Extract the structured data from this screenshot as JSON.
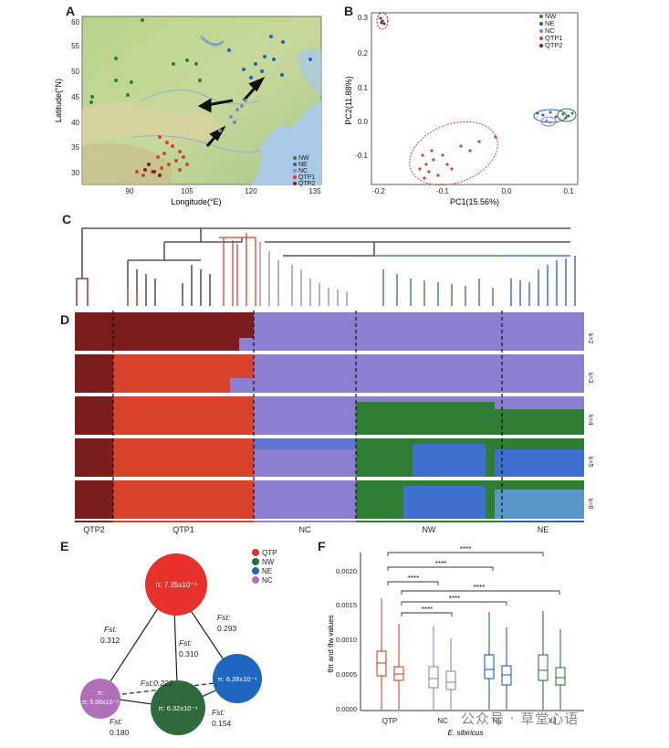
{
  "panels": {
    "A": "A",
    "B": "B",
    "C": "C",
    "D": "D",
    "E": "E",
    "F": "F"
  },
  "colors": {
    "NW": "#2e7d32",
    "NE": "#1e5fc8",
    "NC": "#8c7fd1",
    "QTP1": "#d8432c",
    "QTP2": "#7b1d1d"
  },
  "map": {
    "xlabel": "Longitude(°E)",
    "ylabel": "Latitude(°N)",
    "xticks": [
      "90",
      "105",
      "120",
      "135"
    ],
    "yticks": [
      "60",
      "55",
      "50",
      "45",
      "40",
      "35",
      "30"
    ],
    "legend": [
      "NW",
      "NE",
      "NC",
      "QTP1",
      "QTP2"
    ]
  },
  "pca": {
    "xlabel": "PC1(15.56%)",
    "ylabel": "PC2(11.88%)",
    "xticks": [
      "-0.2",
      "-0.1",
      "0.0",
      "0.1"
    ],
    "yticks": [
      "0.3",
      "0.2",
      "0.1",
      "0.0",
      "-0.1"
    ],
    "legend": [
      "NW",
      "NE",
      "NC",
      "QTP1",
      "QTP2"
    ]
  },
  "structure": {
    "k_labels": [
      "k=2",
      "k=3",
      "k=4",
      "k=5",
      "k=6"
    ],
    "groups": [
      "QTP2",
      "QTP1",
      "NC",
      "NW",
      "NE"
    ]
  },
  "network": {
    "legend": [
      "QTP",
      "NW",
      "NE",
      "NC"
    ],
    "nodes": {
      "QTP": "π: 7.25x10⁻⁴",
      "NC": "π: 5.06x10⁻⁴",
      "NW": "π: 6.32x10⁻⁴",
      "NE": "π: 6.28x10⁻⁴"
    },
    "fst_label": "Fst:",
    "edges": {
      "QTP_NC": "0.312",
      "QTP_NW": "0.310",
      "QTP_NE": "0.293",
      "NC_NE": "0.222",
      "NC_NW": "0.180",
      "NW_NE": "0.154"
    },
    "nc_ne_label": "Fst:0.222"
  },
  "boxplot": {
    "ylabel": "θπ and θw values",
    "xlabel": "E. sibiricus",
    "yticks": [
      "0.0020",
      "0.0015",
      "0.0010",
      "0.0005",
      "0.0000"
    ],
    "categories": [
      "QTP",
      "NC",
      "NE",
      "XJ"
    ],
    "sig": "****",
    "chart_data": {
      "type": "box",
      "categories": [
        "QTP",
        "NC",
        "NE",
        "XJ"
      ],
      "series": [
        {
          "name": "θπ",
          "median": [
            0.00068,
            0.00045,
            0.00058,
            0.00057
          ]
        },
        {
          "name": "θw",
          "median": [
            0.00048,
            0.00037,
            0.00046,
            0.00043
          ]
        }
      ],
      "ylim": [
        0,
        0.0022
      ]
    }
  },
  "watermark": "公众号 · 草堂心语"
}
